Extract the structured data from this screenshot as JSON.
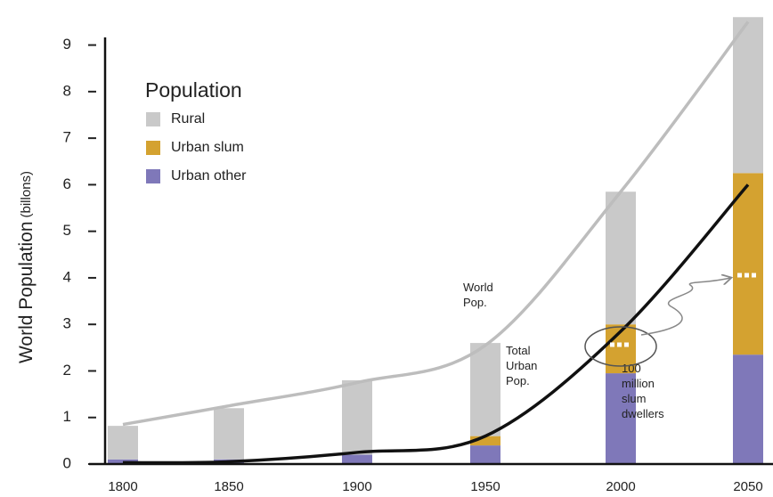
{
  "chart_data": {
    "type": "bar",
    "y_label": "World Population",
    "y_label_unit": "(billons)",
    "legend_title": "Population",
    "categories": [
      "1800",
      "1850",
      "1900",
      "1950",
      "2000",
      "2050"
    ],
    "series": [
      {
        "name": "Rural",
        "color": "#c9c9c9",
        "values": [
          0.72,
          1.1,
          1.6,
          2.0,
          2.85,
          3.35
        ]
      },
      {
        "name": "Urban slum",
        "color": "#d4a230",
        "values": [
          0,
          0,
          0,
          0.2,
          1.05,
          3.9
        ]
      },
      {
        "name": "Urban other",
        "color": "#7f78b9",
        "values": [
          0.1,
          0.1,
          0.2,
          0.4,
          1.95,
          2.35
        ]
      }
    ],
    "lines": [
      {
        "name": "World Pop.",
        "color": "#bdbdbd",
        "values": [
          0.85,
          1.25,
          1.75,
          2.55,
          5.85,
          9.5
        ]
      },
      {
        "name": "Total Urban Pop.",
        "color": "#111111",
        "values": [
          0.03,
          0.05,
          0.25,
          0.6,
          2.85,
          6.0
        ]
      }
    ],
    "annotation": "100 million slum dwellers",
    "ylim": [
      0,
      9.7
    ],
    "yticks": [
      0,
      1,
      2,
      3,
      4,
      5,
      6,
      7,
      8,
      9
    ]
  }
}
